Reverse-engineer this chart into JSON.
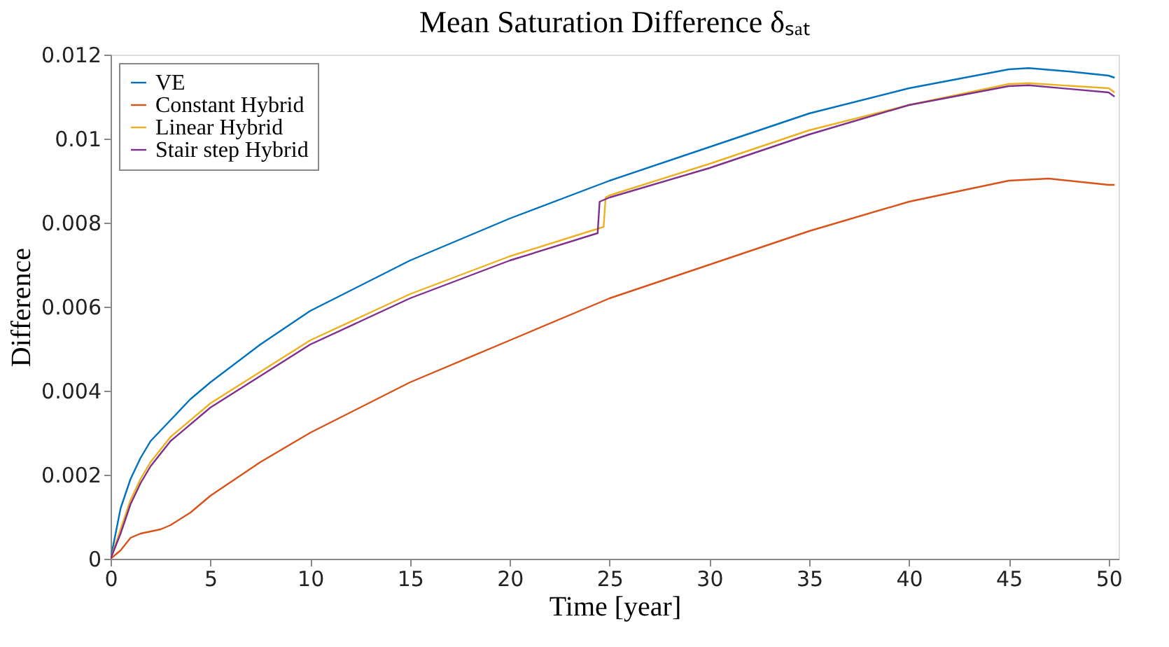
{
  "chart_data": {
    "type": "line",
    "title": "Mean Saturation Difference δₛₐₜ",
    "xlabel": "Time [year]",
    "ylabel": "Difference",
    "xlim": [
      0,
      50.5
    ],
    "xticks": [
      0,
      5,
      10,
      15,
      20,
      25,
      30,
      35,
      40,
      45,
      50
    ],
    "ylim": [
      0,
      0.012
    ],
    "yticks": [
      0,
      0.002,
      0.004,
      0.006,
      0.008,
      0.01,
      0.012
    ],
    "grid": false,
    "legend": "top left",
    "line_style": "solid",
    "marker": "none",
    "series": [
      {
        "name": "VE",
        "color": "#0072bd",
        "x": [
          0,
          0.5,
          1,
          1.5,
          2,
          3,
          4,
          5,
          7.5,
          10,
          15,
          20,
          25,
          30,
          35,
          40,
          45,
          46,
          48,
          50,
          50.3
        ],
        "values": [
          0,
          0.0012,
          0.0019,
          0.0024,
          0.0028,
          0.0033,
          0.0038,
          0.0042,
          0.0051,
          0.0059,
          0.0071,
          0.0081,
          0.009,
          0.0098,
          0.0106,
          0.0112,
          0.01165,
          0.01168,
          0.0116,
          0.0115,
          0.01145
        ]
      },
      {
        "name": "Constant Hybrid",
        "color": "#d95319",
        "x": [
          0,
          0.5,
          1,
          1.5,
          2.5,
          3,
          4,
          5,
          7.5,
          10,
          15,
          20,
          25,
          30,
          35,
          40,
          45,
          47,
          50,
          50.3
        ],
        "values": [
          0,
          0.0002,
          0.0005,
          0.0006,
          0.0007,
          0.0008,
          0.0011,
          0.0015,
          0.0023,
          0.003,
          0.0042,
          0.0052,
          0.0062,
          0.007,
          0.0078,
          0.0085,
          0.009,
          0.00905,
          0.0089,
          0.0089
        ]
      },
      {
        "name": "Linear Hybrid",
        "color": "#edb120",
        "x": [
          0,
          0.5,
          1,
          1.5,
          2,
          3,
          5,
          10,
          15,
          20,
          24.7,
          24.8,
          25,
          30,
          35,
          40,
          45,
          46,
          50,
          50.3
        ],
        "values": [
          0,
          0.0007,
          0.0014,
          0.0019,
          0.0023,
          0.0029,
          0.0037,
          0.0052,
          0.0063,
          0.0072,
          0.0079,
          0.0086,
          0.00865,
          0.0094,
          0.0102,
          0.0108,
          0.0113,
          0.01132,
          0.0112,
          0.0111
        ]
      },
      {
        "name": "Stair step Hybrid",
        "color": "#7e2f8e",
        "x": [
          0,
          0.5,
          1,
          1.5,
          2,
          3,
          5,
          10,
          15,
          20,
          24.4,
          24.5,
          25,
          30,
          35,
          40,
          45,
          46,
          50,
          50.3
        ],
        "values": [
          0,
          0.0006,
          0.0013,
          0.0018,
          0.0022,
          0.0028,
          0.0036,
          0.0051,
          0.0062,
          0.0071,
          0.00775,
          0.0085,
          0.0086,
          0.0093,
          0.0101,
          0.0108,
          0.01125,
          0.01127,
          0.0111,
          0.011
        ]
      }
    ]
  }
}
